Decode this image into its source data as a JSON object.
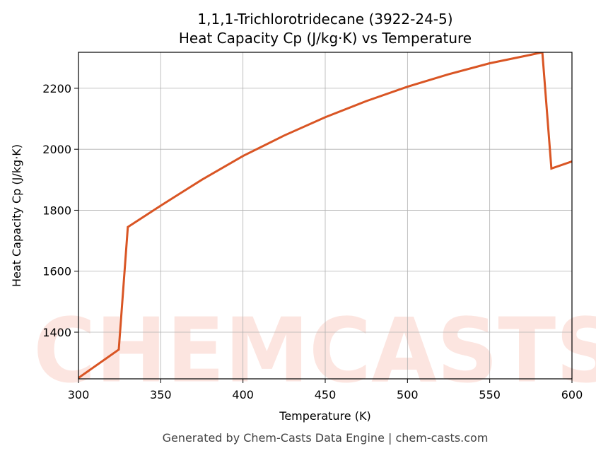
{
  "chart_data": {
    "type": "line",
    "title": "1,1,1-Trichlorotridecane (3922-24-5)",
    "subtitle": "Heat Capacity Cp (J/kg·K) vs Temperature",
    "x_label": "Temperature (K)",
    "y_label": "Heat Capacity Cp (J/kg·K)",
    "footer": "Generated by Chem-Casts Data Engine | chem-casts.com",
    "watermark": "CHEMCASTS",
    "x": [
      300,
      324.5,
      330,
      350,
      375,
      400,
      425,
      450,
      475,
      500,
      525,
      550,
      575,
      582,
      587.5,
      600
    ],
    "series": [
      {
        "name": "Cp",
        "color": "#d95524",
        "values": [
          1250,
          1343,
          1745,
          1815,
          1900,
          1978,
          2045,
          2105,
          2158,
          2205,
          2246,
          2282,
          2310,
          2318,
          1937,
          1960
        ]
      }
    ],
    "xlim": [
      300,
      600
    ],
    "ylim": [
      1247,
      2318
    ],
    "xticks": [
      300,
      350,
      400,
      450,
      500,
      550,
      600
    ],
    "yticks": [
      1400,
      1600,
      1800,
      2000,
      2200
    ],
    "grid": true
  }
}
